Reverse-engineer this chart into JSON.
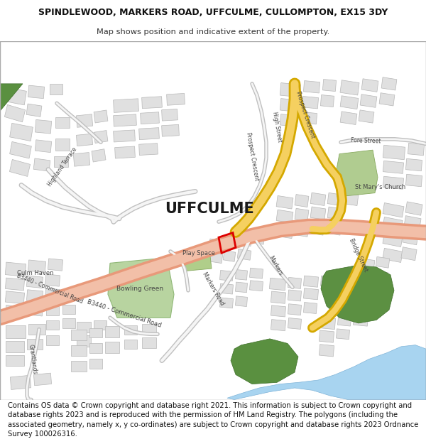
{
  "title_line1": "SPINDLEWOOD, MARKERS ROAD, UFFCULME, CULLOMPTON, EX15 3DY",
  "title_line2": "Map shows position and indicative extent of the property.",
  "footer_text": "Contains OS data © Crown copyright and database right 2021. This information is subject to Crown copyright and database rights 2023 and is reproduced with the permission of HM Land Registry. The polygons (including the associated geometry, namely x, y co-ordinates) are subject to Crown copyright and database rights 2023 Ordnance Survey 100026316.",
  "figure_bg": "#ffffff",
  "map_bg": "#f5f5f5",
  "title_fontsize": 9.0,
  "subtitle_fontsize": 8.2,
  "footer_fontsize": 7.2,
  "road_main_fill": "#f2bfa8",
  "road_main_edge": "#e8997a",
  "road_yellow_fill": "#f5d060",
  "road_yellow_edge": "#d4a800",
  "road_minor_fill": "#ffffff",
  "road_minor_edge": "#c8c8c8",
  "green_light": "#b8d4a0",
  "green_dark": "#5a9045",
  "water_color": "#a8d4f0",
  "building_fill": "#e0e0e0",
  "building_edge": "#b8b8b8",
  "plot_color": "#dd0000",
  "text_dark": "#222222",
  "text_mid": "#444444"
}
